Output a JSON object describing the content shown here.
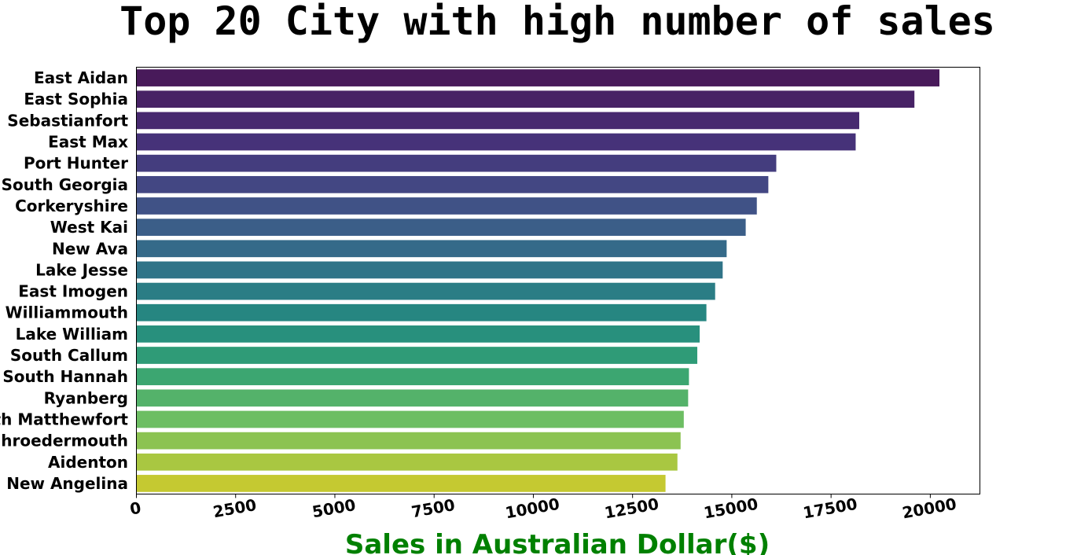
{
  "chart_data": {
    "type": "bar",
    "orientation": "horizontal",
    "title": "Top 20 City with high number of sales",
    "xlabel": "Sales in Australian Dollar($)",
    "ylabel": "",
    "categories": [
      "East Aidan",
      "East Sophia",
      "Sebastianfort",
      "East Max",
      "Port Hunter",
      "South Georgia",
      "Corkeryshire",
      "West Kai",
      "New Ava",
      "Lake Jesse",
      "East Imogen",
      "Williammouth",
      "Lake William",
      "South Callum",
      "South Hannah",
      "Ryanberg",
      "North Matthewfort",
      "Schroedermouth",
      "Aidenton",
      "New Angelina"
    ],
    "values": [
      20230,
      19600,
      18210,
      18120,
      16120,
      15920,
      15630,
      15350,
      14870,
      14770,
      14580,
      14360,
      14190,
      14130,
      13920,
      13900,
      13790,
      13710,
      13630,
      13330
    ],
    "xticks": [
      "0",
      "2500",
      "5000",
      "7500",
      "10000",
      "12500",
      "15000",
      "17500",
      "20000"
    ],
    "xlim": [
      0,
      21250
    ],
    "grid": false,
    "legend": "none",
    "palette": "viridis",
    "colors": {
      "xlabel": "#008000",
      "title": "#000000",
      "bar_start": "#481a5a",
      "bar_end": "#c5c931"
    }
  }
}
